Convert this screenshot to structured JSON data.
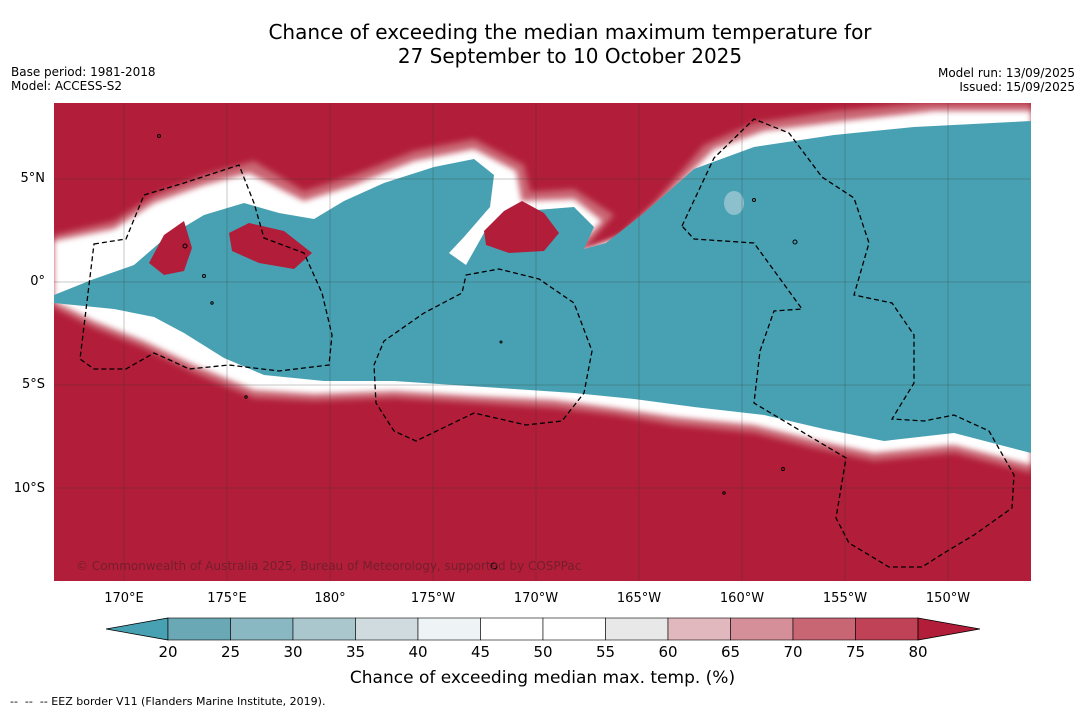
{
  "title_line1": "Chance of exceeding the median maximum temperature for",
  "title_line2": "27 September to 10 October 2025",
  "base_period": "Base period: 1981-2018",
  "model": "Model: ACCESS-S2",
  "model_run": "Model run: 13/09/2025",
  "issued": "Issued: 15/09/2025",
  "copyright": "© Commonwealth of Australia 2025, Bureau of Meteorology, supported by COSPPac",
  "lat_labels": [
    "5°N",
    "0°",
    "5°S",
    "10°S"
  ],
  "lon_labels": [
    "170°E",
    "175°E",
    "180°",
    "175°W",
    "170°W",
    "165°W",
    "160°W",
    "155°W",
    "150°W"
  ],
  "colorbar": {
    "ticks": [
      "20",
      "25",
      "30",
      "35",
      "40",
      "45",
      "50",
      "55",
      "60",
      "65",
      "70",
      "75",
      "80"
    ],
    "colors": [
      "#6ba8b5",
      "#89b8c3",
      "#aac7ce",
      "#cfdbde",
      "#eef3f5",
      "#ffffff",
      "#ffffff",
      "#e8e8e8",
      "#e0b8bd",
      "#d48f98",
      "#c96673",
      "#bf4256"
    ],
    "under_color": "#48a1b3",
    "over_color": "#b21e39",
    "label": "Chance of exceeding median max. temp. (%)"
  },
  "footer": "--  --  -- EEZ border V11 (Flanders Marine Institute, 2019).",
  "colors": {
    "warm": "#b21e39",
    "cool": "#48a1b3"
  }
}
